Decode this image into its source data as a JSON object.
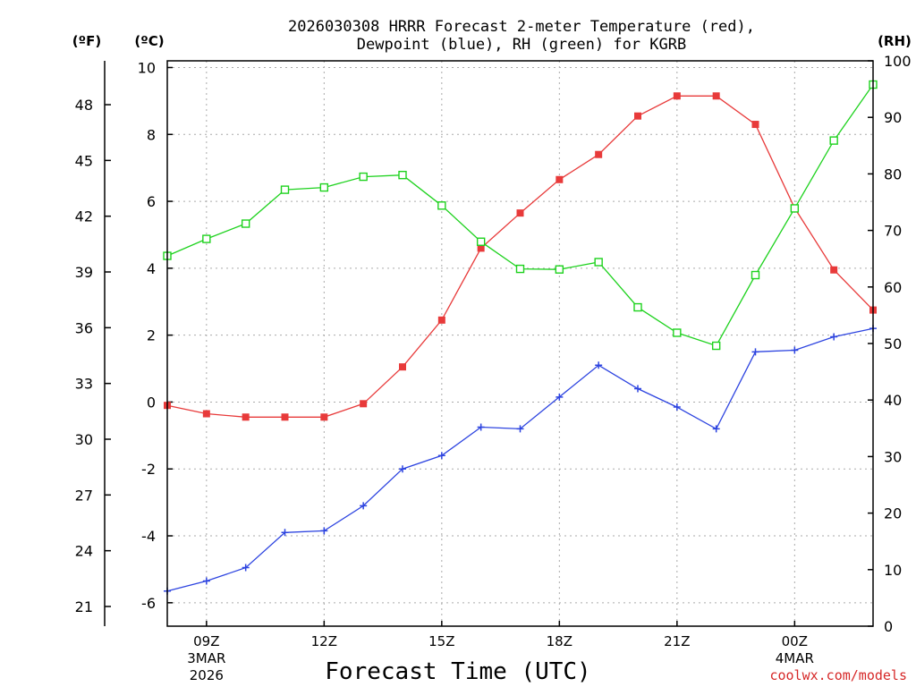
{
  "title": {
    "line1": "2026030308 HRRR Forecast 2-meter Temperature (red),",
    "line2": "Dewpoint (blue), RH (green) for KGRB"
  },
  "units": {
    "f": "(ºF)",
    "c": "(ºC)",
    "rh": "(RH)"
  },
  "x_axis": {
    "title": "Forecast Time (UTC)",
    "ticks": [
      {
        "hour": 1,
        "label": "09Z",
        "sub1": "3MAR",
        "sub2": "2026"
      },
      {
        "hour": 4,
        "label": "12Z",
        "sub1": "",
        "sub2": ""
      },
      {
        "hour": 7,
        "label": "15Z",
        "sub1": "",
        "sub2": ""
      },
      {
        "hour": 10,
        "label": "18Z",
        "sub1": "",
        "sub2": ""
      },
      {
        "hour": 13,
        "label": "21Z",
        "sub1": "",
        "sub2": ""
      },
      {
        "hour": 16,
        "label": "00Z",
        "sub1": "4MAR",
        "sub2": ""
      }
    ]
  },
  "credit": "coolwx.com/models",
  "colors": {
    "temp": "#e83a3a",
    "dewpoint": "#2d44e0",
    "rh": "#1ed21e"
  },
  "chart_data": {
    "type": "line",
    "title": "2026030308 HRRR Forecast 2-meter Temperature (red), Dewpoint (blue), RH (green) for KGRB",
    "xlabel": "Forecast Time (UTC)",
    "x": [
      "08Z",
      "09Z",
      "10Z",
      "11Z",
      "12Z",
      "13Z",
      "14Z",
      "15Z",
      "16Z",
      "17Z",
      "18Z",
      "19Z",
      "20Z",
      "21Z",
      "22Z",
      "23Z",
      "00Z",
      "01Z",
      "02Z"
    ],
    "xlim": [
      0,
      18
    ],
    "y_left_c": {
      "label": "(ºC)",
      "lim": [
        -6.7,
        10.2
      ],
      "ticks": [
        -6,
        -4,
        -2,
        0,
        2,
        4,
        6,
        8,
        10
      ]
    },
    "y_left_f": {
      "label": "(ºF)",
      "ticks": [
        21,
        24,
        27,
        30,
        33,
        36,
        39,
        42,
        45,
        48
      ]
    },
    "y_right": {
      "label": "(RH)",
      "lim": [
        0,
        100
      ],
      "ticks": [
        0,
        10,
        20,
        30,
        40,
        50,
        60,
        70,
        80,
        90,
        100
      ]
    },
    "series": [
      {
        "name": "Temperature",
        "axis": "c",
        "marker": "filled-square",
        "values": [
          -0.1,
          -0.35,
          -0.45,
          -0.45,
          -0.45,
          -0.05,
          1.05,
          2.45,
          4.6,
          5.65,
          6.65,
          7.4,
          8.55,
          9.15,
          9.15,
          8.3,
          5.8,
          3.95,
          2.75
        ]
      },
      {
        "name": "Dewpoint",
        "axis": "c",
        "marker": "plus",
        "values": [
          -5.65,
          -5.35,
          -4.95,
          -3.9,
          -3.85,
          -3.1,
          -2.0,
          -1.6,
          -0.75,
          -0.8,
          0.15,
          1.1,
          0.4,
          -0.15,
          -0.8,
          1.5,
          1.55,
          1.95,
          2.2
        ]
      },
      {
        "name": "RH",
        "axis": "rh",
        "marker": "open-square",
        "values": [
          65.5,
          68.5,
          71.2,
          77.2,
          77.6,
          79.5,
          79.8,
          74.4,
          68.0,
          63.2,
          63.1,
          64.4,
          56.4,
          51.9,
          49.6,
          62.1,
          73.9,
          85.9,
          95.8
        ]
      }
    ]
  }
}
